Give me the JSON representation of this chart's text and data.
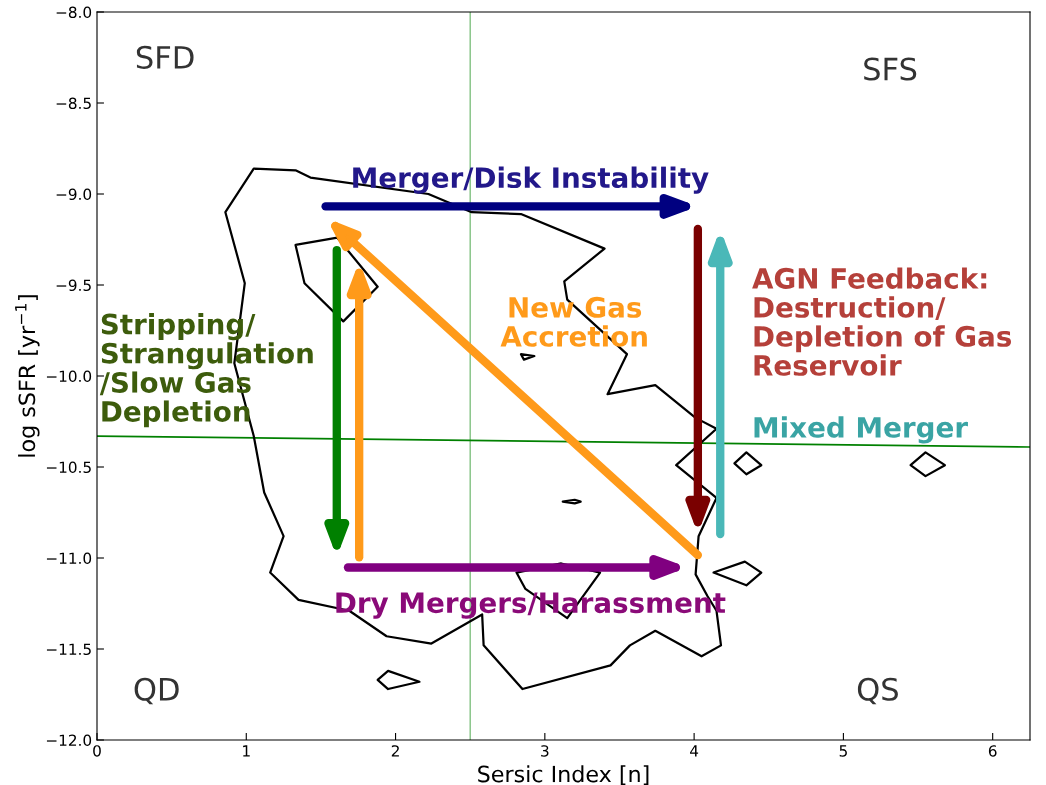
{
  "chart_data": {
    "type": "line",
    "xlabel": "Sersic Index [n]",
    "ylabel": "log sSFR [yr$^{−1}$]",
    "xlim": [
      0,
      6.25
    ],
    "xticks": [
      0,
      1,
      2,
      3,
      4,
      5,
      6
    ],
    "ylim": [
      -12,
      -8
    ],
    "yticks": [
      {
        "value": -12,
        "label": "−12.0"
      },
      {
        "value": -11.5,
        "label": "−11.5"
      },
      {
        "value": -11,
        "label": "−11.0"
      },
      {
        "value": -10.5,
        "label": "−10.5"
      },
      {
        "value": -10,
        "label": "−10.0"
      },
      {
        "value": -9.5,
        "label": "−9.5"
      },
      {
        "value": -9,
        "label": "−9.0"
      },
      {
        "value": -8.5,
        "label": "−8.5"
      },
      {
        "value": -8,
        "label": "−8.0"
      }
    ],
    "grid": false,
    "legend": false,
    "marker": "none",
    "line_style": "solid",
    "series": [
      {
        "color": "#008000",
        "x": [
          0,
          6.25
        ],
        "values": [
          -10.33,
          -10.39
        ]
      }
    ],
    "ref_lines": [
      {
        "axis": "x",
        "value": 2.5,
        "color": "#80c080"
      }
    ],
    "annotations": [
      "SFD",
      "SFS",
      "QD",
      "QS",
      "Merger/Disk Instability",
      "Stripping/\nStrangulation\n/Slow Gas\nDepletion",
      "New Gas\nAccretion",
      "AGN Feedback:\nDestruction/\nDepletion of Gas\nReservoir",
      "Mixed Merger",
      "Dry Mergers/Harassment"
    ]
  }
}
